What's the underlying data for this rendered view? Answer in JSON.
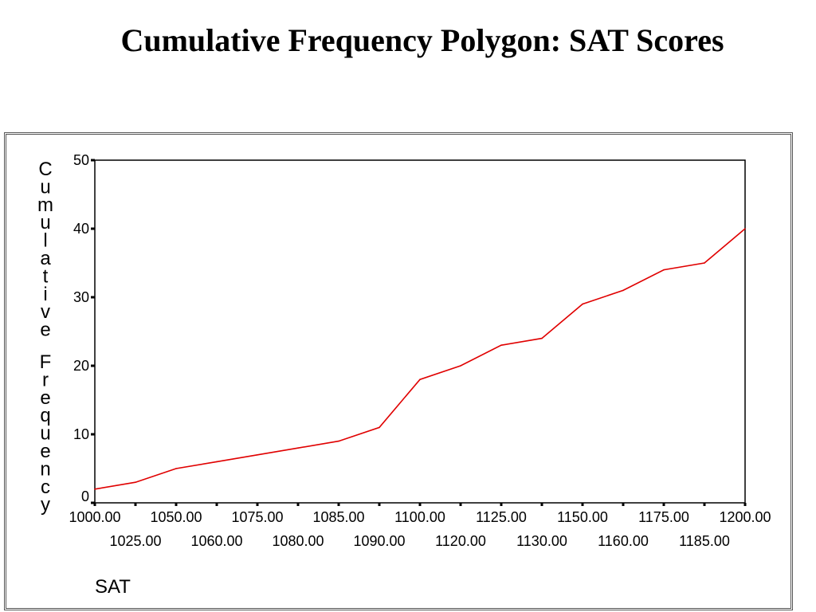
{
  "chart_data": {
    "type": "line",
    "title": "Cumulative Frequency Polygon: SAT Scores",
    "xlabel": "SAT",
    "ylabel": "Cumulative Frequency",
    "x_ticks": [
      "1000.00",
      "1025.00",
      "1050.00",
      "1060.00",
      "1075.00",
      "1080.00",
      "1085.00",
      "1090.00",
      "1100.00",
      "1120.00",
      "1125.00",
      "1130.00",
      "1150.00",
      "1160.00",
      "1175.00",
      "1185.00",
      "1200.00"
    ],
    "y_ticks": [
      "0",
      "10",
      "20",
      "30",
      "40",
      "50"
    ],
    "ylim": [
      0,
      50
    ],
    "series": [
      {
        "x": [
          "1000.00",
          "1025.00",
          "1050.00",
          "1060.00",
          "1075.00",
          "1080.00",
          "1085.00",
          "1090.00",
          "1100.00",
          "1120.00",
          "1125.00",
          "1130.00",
          "1150.00",
          "1160.00",
          "1175.00",
          "1185.00",
          "1200.00"
        ],
        "values": [
          2,
          3,
          5,
          6,
          7,
          8,
          9,
          11,
          18,
          20,
          23,
          24,
          29,
          31,
          34,
          35,
          40
        ],
        "color": "#e00000"
      }
    ],
    "grid": false,
    "legend": "none"
  }
}
